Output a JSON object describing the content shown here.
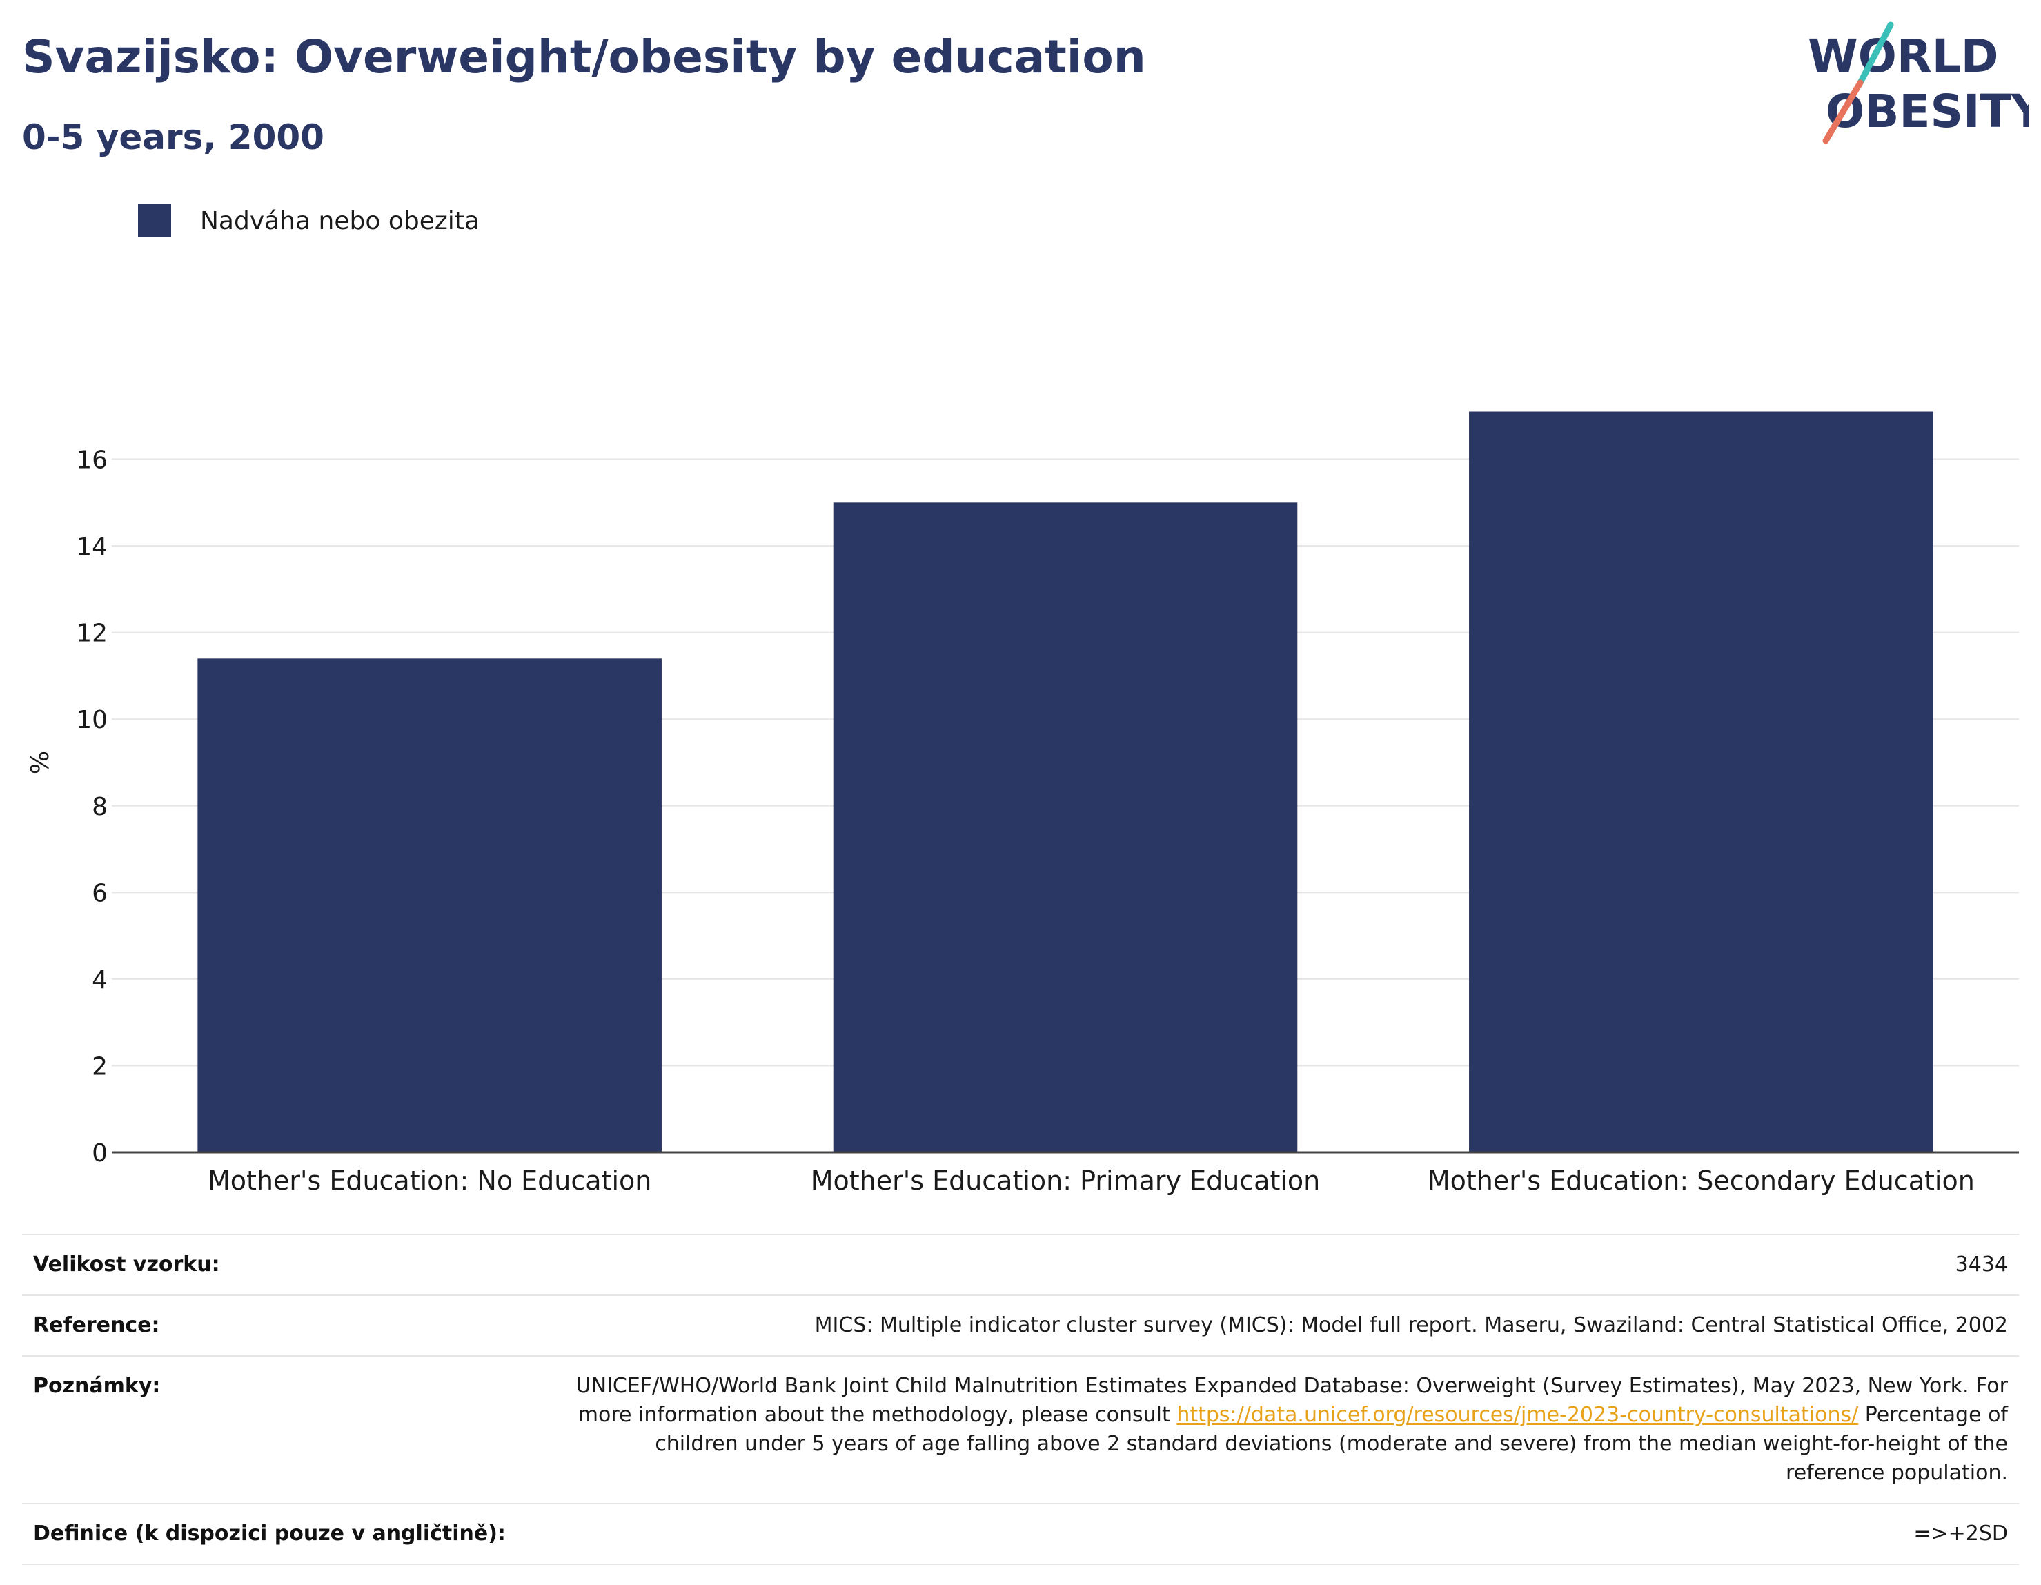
{
  "header": {
    "title": "Svazijsko: Overweight/obesity by education",
    "subtitle": "0-5 years, 2000"
  },
  "logo": {
    "line1": "WORLD",
    "line2": "OBESITY",
    "colors": {
      "text": "#2a3663",
      "slash_top": "#3bbfb9",
      "slash_bottom": "#e8735d"
    }
  },
  "colors": {
    "bar": "#2a3663",
    "grid": "#e6e6e6",
    "axis": "#444444",
    "link": "#e8a21a"
  },
  "chart_data": {
    "type": "bar",
    "categories": [
      "Mother's Education: No Education",
      "Mother's Education: Primary Education",
      "Mother's Education: Secondary Education"
    ],
    "series": [
      {
        "name": "Nadváha nebo obezita",
        "values": [
          11.4,
          15.0,
          17.1
        ]
      }
    ],
    "ylabel": "%",
    "ylim": [
      0,
      18
    ],
    "yticks": [
      0,
      2,
      4,
      6,
      8,
      10,
      12,
      14,
      16
    ],
    "grid": true,
    "legend": "top-left"
  },
  "meta": [
    {
      "key": "Velikost vzorku:",
      "value": "3434"
    },
    {
      "key": "Reference:",
      "value": "MICS: Multiple indicator cluster survey (MICS): Model full report. Maseru, Swaziland: Central Statistical Office, 2002"
    },
    {
      "key": "Poznámky:",
      "value_before": "UNICEF/WHO/World Bank Joint Child Malnutrition Estimates Expanded Database: Overweight (Survey Estimates), May 2023, New York. For more information about the methodology, please consult ",
      "link": "https://data.unicef.org/resources/jme-2023-country-consultations/",
      "value_after": " Percentage of children under 5 years of age falling above 2 standard deviations (moderate and severe) from the median weight-for-height of the reference population."
    },
    {
      "key": "Definice (k dispozici pouze v angličtině):",
      "value": "=>+2SD"
    }
  ]
}
